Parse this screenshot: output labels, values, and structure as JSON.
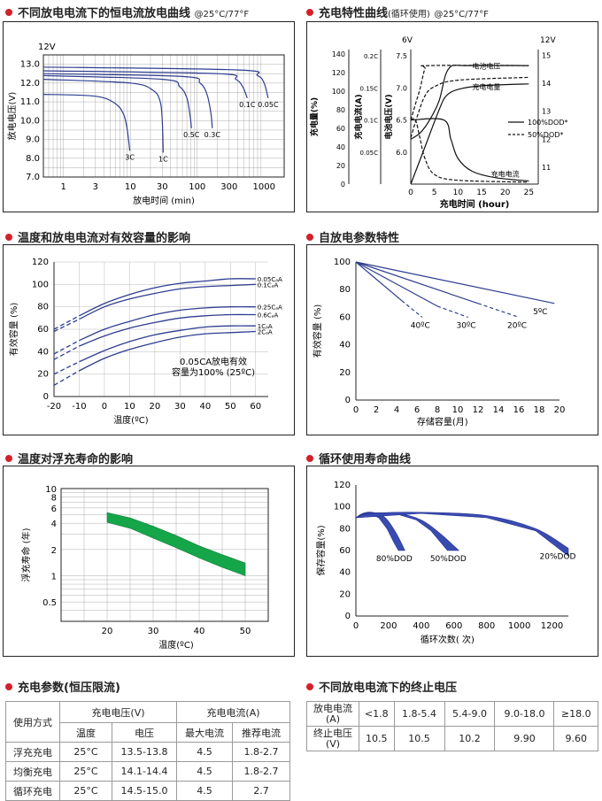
{
  "sections": {
    "discharge_curve": "不同放电电流下的恒电流放电曲线",
    "discharge_curve_suffix": "@25°C/77°F",
    "charge_curve": "充电特性曲线",
    "charge_curve_note": "(循环使用)",
    "charge_curve_suffix": "@25°C/77°F",
    "temp_capacity": "温度和放电电流对有效容量的影响",
    "self_discharge": "自放电参数特性",
    "float_life": "温度对浮充寿命的影响",
    "cycle_life": "循环使用寿命曲线",
    "charge_params": "充电参数(恒压限流)",
    "cutoff_voltage": "不同放电电流下的终止电压"
  },
  "colors": {
    "accent": "#d4202a",
    "curve": "#2e3d8f",
    "band_green": "#16a64a",
    "band_blue": "#3a4bb0",
    "frame": "#222222"
  },
  "chart_data": [
    {
      "id": "discharge",
      "type": "line",
      "title": "",
      "xlabel": "放电时间 (min)",
      "ylabel": "放电电压(V)",
      "ytop_label": "12V",
      "xscale": "log",
      "xlim": [
        0.5,
        2000
      ],
      "ylim": [
        7.0,
        13.5
      ],
      "xticks": [
        1,
        3,
        10,
        30,
        100,
        300,
        1000
      ],
      "yticks": [
        7.0,
        8.0,
        9.0,
        10.0,
        11.0,
        12.0,
        13.0
      ],
      "grid": true,
      "series": [
        {
          "name": "3C",
          "points": [
            [
              0.5,
              11.4
            ],
            [
              3,
              11.3
            ],
            [
              6,
              10.9
            ],
            [
              8,
              10.3
            ],
            [
              9,
              9.5
            ],
            [
              9.8,
              8.4
            ]
          ]
        },
        {
          "name": "1C",
          "points": [
            [
              0.5,
              12.2
            ],
            [
              10,
              12.0
            ],
            [
              22,
              11.6
            ],
            [
              28,
              11.0
            ],
            [
              30,
              10.0
            ],
            [
              31,
              8.3
            ]
          ]
        },
        {
          "name": "0.5C",
          "points": [
            [
              0.5,
              12.4
            ],
            [
              30,
              12.2
            ],
            [
              55,
              11.8
            ],
            [
              70,
              11.2
            ],
            [
              78,
              10.3
            ],
            [
              82,
              9.6
            ]
          ]
        },
        {
          "name": "0.3C",
          "points": [
            [
              0.5,
              12.5
            ],
            [
              60,
              12.35
            ],
            [
              110,
              12.0
            ],
            [
              140,
              11.4
            ],
            [
              160,
              10.4
            ],
            [
              168,
              9.6
            ]
          ]
        },
        {
          "name": "0.1C",
          "points": [
            [
              0.5,
              12.65
            ],
            [
              200,
              12.5
            ],
            [
              380,
              12.2
            ],
            [
              480,
              11.8
            ],
            [
              560,
              11.2
            ]
          ]
        },
        {
          "name": "0.05C",
          "points": [
            [
              0.5,
              12.85
            ],
            [
              400,
              12.7
            ],
            [
              800,
              12.4
            ],
            [
              1000,
              12.0
            ],
            [
              1150,
              11.2
            ]
          ]
        }
      ]
    },
    {
      "id": "charge",
      "type": "line",
      "title": "",
      "xlabel": "充电时间 (hour)",
      "xlim": [
        0,
        27
      ],
      "xticks": [
        0,
        5,
        10,
        15,
        20,
        25
      ],
      "left_axis_1": {
        "label": "充电量(%)",
        "ticks": [
          0,
          20,
          40,
          60,
          80,
          100,
          120,
          140
        ],
        "lim": [
          0,
          145
        ]
      },
      "left_axis_2": {
        "label": "充电电流(A)",
        "ticks": [
          "0.05C",
          "0.1C",
          "0.15C",
          "0.2C"
        ]
      },
      "left_axis_3": {
        "label": "电池电压(V)",
        "top": "6V",
        "ticks": [
          6.0,
          6.5,
          7.0,
          7.5
        ],
        "lim": [
          5.5,
          7.6
        ]
      },
      "right_axis": {
        "top": "12V",
        "ticks": [
          11,
          12,
          13,
          14,
          15
        ],
        "lim": [
          10.4,
          15.2
        ]
      },
      "legend": [
        "100%DOD*",
        "50%DOD*"
      ],
      "curve_labels": [
        "电池电压",
        "充电电量",
        "充电电流"
      ],
      "series": [
        {
          "name": "100%DOD*",
          "curve": "电池电压",
          "unit": "V",
          "points": [
            [
              0,
              6.2
            ],
            [
              2,
              6.3
            ],
            [
              4,
              6.5
            ],
            [
              6,
              6.8
            ],
            [
              8,
              7.3
            ],
            [
              12,
              7.35
            ],
            [
              25,
              7.35
            ]
          ]
        },
        {
          "name": "50%DOD*",
          "curve": "电池电压",
          "unit": "V",
          "points": [
            [
              0,
              6.5
            ],
            [
              1,
              6.75
            ],
            [
              2,
              7.0
            ],
            [
              3,
              7.3
            ],
            [
              4,
              7.35
            ],
            [
              25,
              7.35
            ]
          ]
        },
        {
          "name": "100%DOD*",
          "curve": "充电电量",
          "unit": "%",
          "points": [
            [
              0,
              0
            ],
            [
              3,
              40
            ],
            [
              6,
              80
            ],
            [
              7.5,
              95
            ],
            [
              10,
              102
            ],
            [
              15,
              106
            ],
            [
              25,
              108
            ]
          ]
        },
        {
          "name": "50%DOD*",
          "curve": "充电电量",
          "unit": "%",
          "points": [
            [
              0,
              50
            ],
            [
              1.5,
              75
            ],
            [
              3,
              95
            ],
            [
              5,
              105
            ],
            [
              10,
              112
            ],
            [
              25,
              115
            ]
          ]
        },
        {
          "name": "100%DOD*",
          "curve": "充电电流",
          "unit": "C",
          "points": [
            [
              0,
              0.1
            ],
            [
              7,
              0.1
            ],
            [
              8.5,
              0.07
            ],
            [
              10,
              0.04
            ],
            [
              13,
              0.02
            ],
            [
              18,
              0.01
            ],
            [
              25,
              0.005
            ]
          ]
        },
        {
          "name": "50%DOD*",
          "curve": "充电电流",
          "unit": "C",
          "points": [
            [
              0,
              0.1
            ],
            [
              1,
              0.1
            ],
            [
              2,
              0.07
            ],
            [
              3,
              0.04
            ],
            [
              5,
              0.015
            ],
            [
              10,
              0.006
            ],
            [
              25,
              0.003
            ]
          ]
        }
      ]
    },
    {
      "id": "temp_capacity",
      "type": "line",
      "title": "",
      "xlabel": "温度(ºC)",
      "ylabel": "有效容量 (%)",
      "xlim": [
        -20,
        65
      ],
      "ylim": [
        0,
        120
      ],
      "xticks": [
        -20,
        -10,
        0,
        10,
        20,
        30,
        40,
        50,
        60
      ],
      "yticks": [
        0,
        20,
        40,
        60,
        80,
        100,
        120
      ],
      "annotation": [
        "0.05CA放电有效",
        "容量为100% (25ºC)"
      ],
      "series": [
        {
          "name": "0.05CₐA",
          "points": [
            [
              -20,
              60
            ],
            [
              -10,
              72
            ],
            [
              0,
              83
            ],
            [
              10,
              91
            ],
            [
              20,
              97
            ],
            [
              30,
              101
            ],
            [
              40,
              103
            ],
            [
              50,
              105
            ],
            [
              60,
              105
            ]
          ]
        },
        {
          "name": "0.1CₐA",
          "points": [
            [
              -20,
              58
            ],
            [
              -10,
              69
            ],
            [
              0,
              80
            ],
            [
              10,
              87
            ],
            [
              20,
              92
            ],
            [
              30,
              96
            ],
            [
              40,
              98
            ],
            [
              50,
              99
            ],
            [
              60,
              100
            ]
          ]
        },
        {
          "name": "0.25CₐA",
          "points": [
            [
              -20,
              38
            ],
            [
              -10,
              50
            ],
            [
              0,
              60
            ],
            [
              10,
              67
            ],
            [
              20,
              73
            ],
            [
              30,
              77
            ],
            [
              40,
              79
            ],
            [
              50,
              80
            ],
            [
              60,
              80
            ]
          ]
        },
        {
          "name": "0.6CₐA",
          "points": [
            [
              -20,
              33
            ],
            [
              -10,
              45
            ],
            [
              0,
              54
            ],
            [
              10,
              61
            ],
            [
              20,
              66
            ],
            [
              30,
              70
            ],
            [
              40,
              72
            ],
            [
              50,
              73
            ],
            [
              60,
              73
            ]
          ]
        },
        {
          "name": "1CₐA",
          "points": [
            [
              -20,
              20
            ],
            [
              -10,
              31
            ],
            [
              0,
              41
            ],
            [
              10,
              49
            ],
            [
              20,
              55
            ],
            [
              30,
              59
            ],
            [
              40,
              62
            ],
            [
              50,
              63
            ],
            [
              60,
              63
            ]
          ]
        },
        {
          "name": "2CₐA",
          "points": [
            [
              -20,
              10
            ],
            [
              -10,
              23
            ],
            [
              0,
              34
            ],
            [
              10,
              42
            ],
            [
              20,
              48
            ],
            [
              30,
              53
            ],
            [
              40,
              56
            ],
            [
              50,
              57
            ],
            [
              60,
              58
            ]
          ]
        }
      ]
    },
    {
      "id": "self_discharge",
      "type": "line",
      "title": "",
      "xlabel": "存储容量(月)",
      "ylabel": "有效容量 (%)",
      "xlim": [
        0,
        20
      ],
      "ylim": [
        0,
        100
      ],
      "xticks": [
        0,
        2,
        4,
        6,
        8,
        10,
        12,
        14,
        16,
        18,
        20
      ],
      "yticks": [
        0,
        20,
        40,
        60,
        80,
        100
      ],
      "series": [
        {
          "name": "5ºC",
          "points": [
            [
              0,
              100
            ],
            [
              19.5,
              70
            ]
          ]
        },
        {
          "name": "20ºC",
          "points": [
            [
              0,
              100
            ],
            [
              12,
              70
            ],
            [
              16,
              60
            ]
          ]
        },
        {
          "name": "30ºC",
          "points": [
            [
              0,
              100
            ],
            [
              8,
              68
            ],
            [
              11,
              60
            ]
          ]
        },
        {
          "name": "40ºC",
          "points": [
            [
              0,
              100
            ],
            [
              4.5,
              72
            ],
            [
              6.5,
              60
            ]
          ]
        }
      ]
    },
    {
      "id": "float_life",
      "type": "area",
      "title": "",
      "xlabel": "温度(ºC)",
      "ylabel": "浮充寿命 (年)",
      "yscale": "log",
      "xlim": [
        10,
        55
      ],
      "ylim": [
        0.3,
        10
      ],
      "xticks": [
        20,
        30,
        40,
        50
      ],
      "yticks": [
        0.5,
        1,
        2,
        4,
        6,
        8,
        10
      ],
      "yticklabels": [
        "0.5",
        "1",
        "2",
        "4",
        "6",
        "8",
        "10"
      ],
      "band": {
        "x": [
          20,
          25,
          30,
          35,
          40,
          45,
          50
        ],
        "upper": [
          5.3,
          4.6,
          3.7,
          2.9,
          2.2,
          1.75,
          1.4
        ],
        "lower": [
          4.1,
          3.5,
          2.7,
          2.1,
          1.6,
          1.25,
          1.0
        ]
      }
    },
    {
      "id": "cycle_life",
      "type": "area",
      "title": "",
      "xlabel": "循环次数( 次)",
      "ylabel": "保存容量(%)",
      "xlim": [
        0,
        1300
      ],
      "ylim": [
        0,
        120
      ],
      "xticks": [
        0,
        200,
        400,
        600,
        800,
        1000,
        1200
      ],
      "yticks": [
        0,
        20,
        40,
        60,
        80,
        100,
        120
      ],
      "series": [
        {
          "name": "80%DOD",
          "start": [
            0,
            90
          ],
          "upper": [
            [
              40,
              94
            ],
            [
              100,
              95
            ],
            [
              180,
              90
            ],
            [
              250,
              75
            ],
            [
              300,
              60
            ]
          ],
          "lower": [
            [
              80,
              94
            ],
            [
              140,
              90
            ],
            [
              190,
              80
            ],
            [
              230,
              68
            ],
            [
              260,
              60
            ]
          ]
        },
        {
          "name": "50%DOD",
          "start": [
            0,
            90
          ],
          "upper": [
            [
              60,
              94
            ],
            [
              250,
              94
            ],
            [
              400,
              88
            ],
            [
              520,
              75
            ],
            [
              630,
              60
            ]
          ],
          "lower": [
            [
              260,
              93
            ],
            [
              370,
              88
            ],
            [
              460,
              78
            ],
            [
              560,
              60
            ]
          ]
        },
        {
          "name": "20%DOD",
          "start": [
            0,
            90
          ],
          "upper": [
            [
              100,
              94
            ],
            [
              400,
              95
            ],
            [
              800,
              92
            ],
            [
              1100,
              80
            ],
            [
              1300,
              62
            ]
          ],
          "lower": [
            [
              400,
              94
            ],
            [
              800,
              90
            ],
            [
              1100,
              78
            ],
            [
              1300,
              55
            ]
          ]
        }
      ]
    }
  ],
  "charge_table": {
    "headers": [
      "使用方式",
      "充电电压(V)",
      "充电电流(A)"
    ],
    "subheaders": [
      "温度",
      "电压",
      "最大电流",
      "推荐电流"
    ],
    "rows": [
      [
        "浮充充电",
        "25°C",
        "13.5-13.8",
        "4.5",
        "1.8-2.7"
      ],
      [
        "均衡充电",
        "25°C",
        "14.1-14.4",
        "4.5",
        "1.8-2.7"
      ],
      [
        "循环充电",
        "25°C",
        "14.5-15.0",
        "4.5",
        "2.7"
      ]
    ]
  },
  "cutoff_table": {
    "row1_label": [
      "放电电流",
      "(A)"
    ],
    "row2_label": [
      "终止电压",
      "(V)"
    ],
    "currents": [
      "<1.8",
      "1.8-5.4",
      "5.4-9.0",
      "9.0-18.0",
      "≥18.0"
    ],
    "voltages": [
      "10.5",
      "10.5",
      "10.2",
      "9.90",
      "9.60"
    ]
  }
}
